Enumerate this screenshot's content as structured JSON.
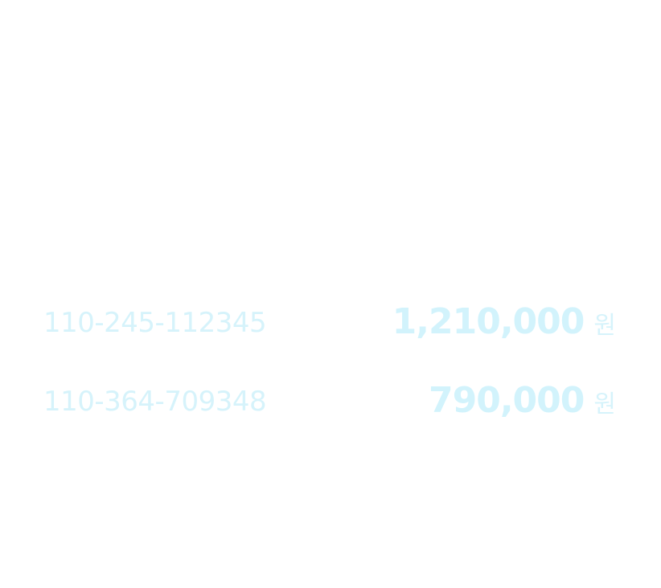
{
  "colors": {
    "background": "#ffffff",
    "text": "#d6f3fb"
  },
  "accounts": [
    {
      "number": "110-245-112345",
      "balance": "1,210,000",
      "unit": "원"
    },
    {
      "number": "110-364-709348",
      "balance": "790,000",
      "unit": "원"
    }
  ]
}
